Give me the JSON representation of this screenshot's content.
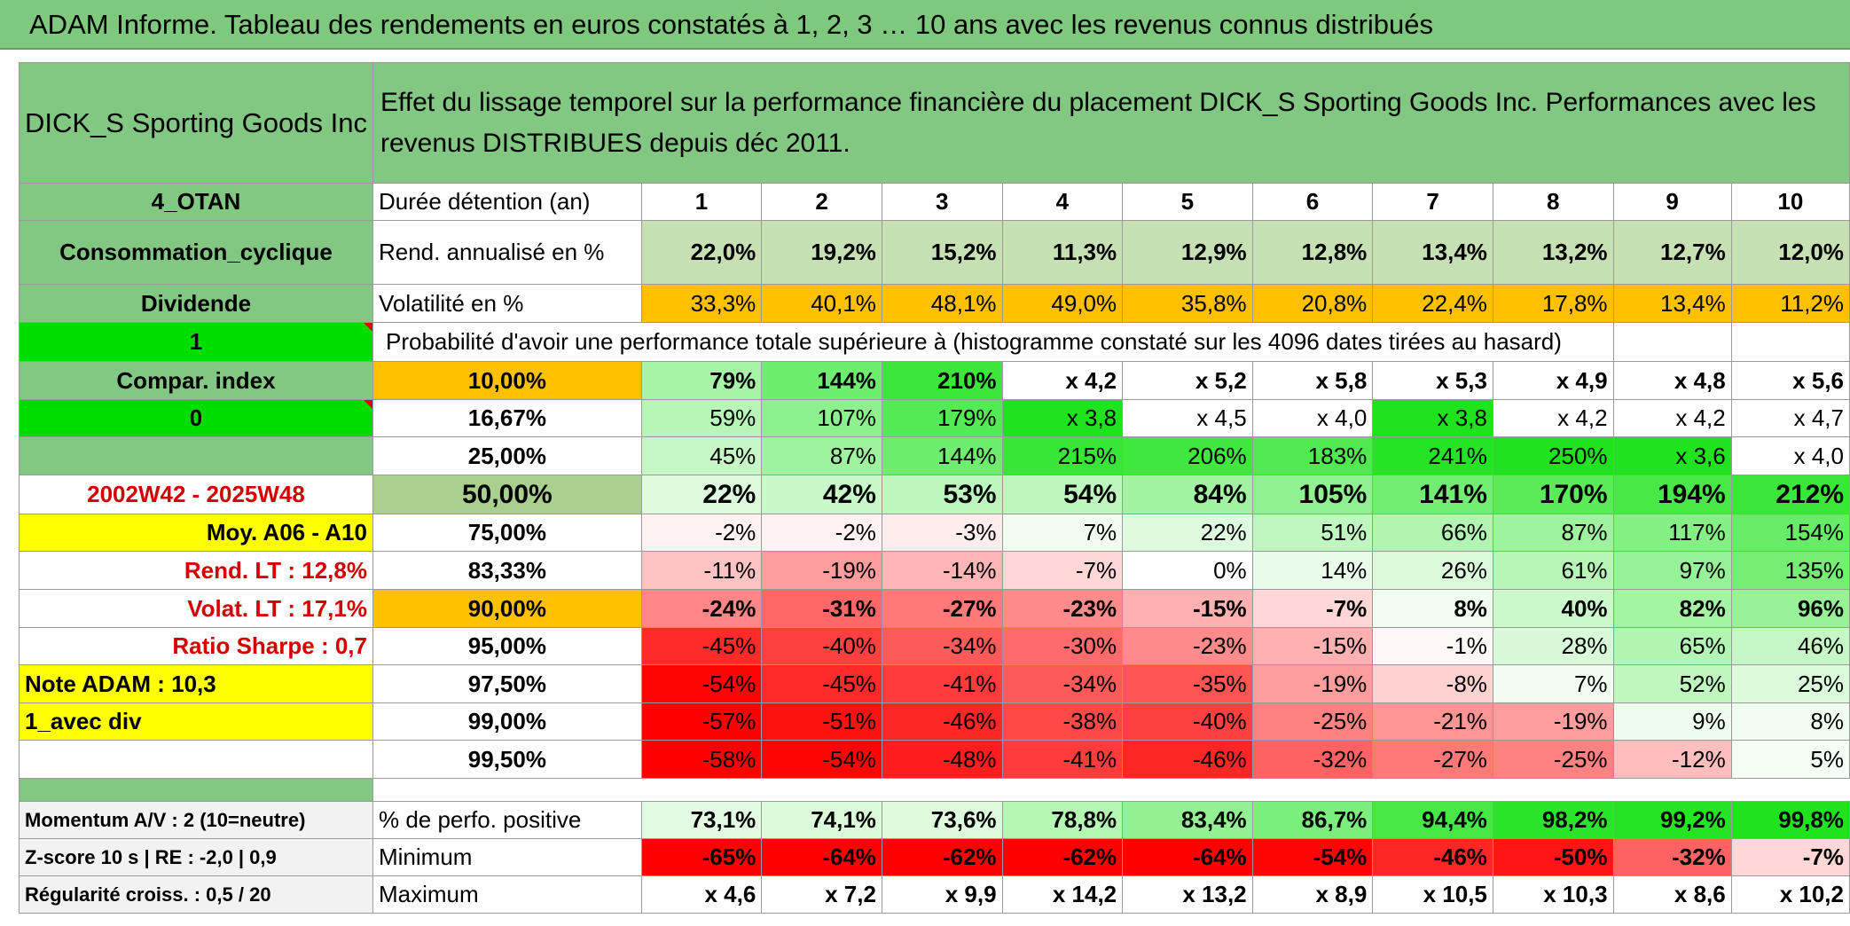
{
  "title": "ADAM Informe. Tableau des rendements en euros constatés à 1, 2, 3 … 10 ans avec les revenus connus distribués",
  "left": {
    "name": "DICK_S Sporting Goods Inc",
    "code": "4_OTAN",
    "sector": "Consommation_cyclique",
    "dividend_label": "Dividende",
    "one": "1",
    "compar_label": "Compar. index",
    "zero": "0",
    "period": "2002W42 - 2025W48",
    "moy": "Moy. A06 - A10",
    "rend_lt": "Rend. LT :    12,8%",
    "volat_lt": "Volat. LT :    17,1%",
    "sharpe": "Ratio Sharpe :    0,7",
    "note": "Note ADAM : 10,3",
    "avec_div": "1_avec div",
    "momentum": "Momentum A/V : 2 (10=neutre)",
    "zscore": "Z-score 10 s | RE : -2,0 | 0,9",
    "regularite": "Régularité croiss. : 0,5 / 20"
  },
  "header_text": "Effet du lissage temporel sur la performance financière du placement DICK_S Sporting Goods Inc. Performances avec les revenus DISTRIBUES depuis déc 2011.",
  "duree_label": "Durée détention (an)",
  "years": [
    "1",
    "2",
    "3",
    "4",
    "5",
    "6",
    "7",
    "8",
    "9",
    "10"
  ],
  "rend": {
    "label": "Rend. annualisé en %",
    "values": [
      "22,0%",
      "19,2%",
      "15,2%",
      "11,3%",
      "12,9%",
      "12,8%",
      "13,4%",
      "13,2%",
      "12,7%",
      "12,0%"
    ]
  },
  "vol": {
    "label": "Volatilité en %",
    "values": [
      "33,3%",
      "40,1%",
      "48,1%",
      "49,0%",
      "35,8%",
      "20,8%",
      "22,4%",
      "17,8%",
      "13,4%",
      "11,2%"
    ]
  },
  "proba_label": "Probabilité d'avoir une performance totale supérieure à (histogramme constaté sur les 4096 dates tirées au hasard)",
  "prob_rows": [
    {
      "p": "10,00%",
      "values": [
        "79%",
        "144%",
        "210%",
        "x 4,2",
        "x 5,2",
        "x 5,8",
        "x 5,3",
        "x 4,9",
        "x 4,8",
        "x 5,6"
      ]
    },
    {
      "p": "16,67%",
      "values": [
        "59%",
        "107%",
        "179%",
        "x 3,8",
        "x 4,5",
        "x 4,0",
        "x 3,8",
        "x 4,2",
        "x 4,2",
        "x 4,7"
      ]
    },
    {
      "p": "25,00%",
      "values": [
        "45%",
        "87%",
        "144%",
        "215%",
        "206%",
        "183%",
        "241%",
        "250%",
        "x 3,6",
        "x 4,0"
      ]
    },
    {
      "p": "50,00%",
      "values": [
        "22%",
        "42%",
        "53%",
        "54%",
        "84%",
        "105%",
        "141%",
        "170%",
        "194%",
        "212%"
      ]
    },
    {
      "p": "75,00%",
      "values": [
        "-2%",
        "-2%",
        "-3%",
        "7%",
        "22%",
        "51%",
        "66%",
        "87%",
        "117%",
        "154%"
      ]
    },
    {
      "p": "83,33%",
      "values": [
        "-11%",
        "-19%",
        "-14%",
        "-7%",
        "0%",
        "14%",
        "26%",
        "61%",
        "97%",
        "135%"
      ]
    },
    {
      "p": "90,00%",
      "values": [
        "-24%",
        "-31%",
        "-27%",
        "-23%",
        "-15%",
        "-7%",
        "8%",
        "40%",
        "82%",
        "96%"
      ]
    },
    {
      "p": "95,00%",
      "values": [
        "-45%",
        "-40%",
        "-34%",
        "-30%",
        "-23%",
        "-15%",
        "-1%",
        "28%",
        "65%",
        "46%"
      ]
    },
    {
      "p": "97,50%",
      "values": [
        "-54%",
        "-45%",
        "-41%",
        "-34%",
        "-35%",
        "-19%",
        "-8%",
        "7%",
        "52%",
        "25%"
      ]
    },
    {
      "p": "99,00%",
      "values": [
        "-57%",
        "-51%",
        "-46%",
        "-38%",
        "-40%",
        "-25%",
        "-21%",
        "-19%",
        "9%",
        "8%"
      ]
    },
    {
      "p": "99,50%",
      "values": [
        "-58%",
        "-54%",
        "-48%",
        "-41%",
        "-46%",
        "-32%",
        "-27%",
        "-25%",
        "-12%",
        "5%"
      ]
    }
  ],
  "pos": {
    "label": "% de perfo. positive",
    "values": [
      "73,1%",
      "74,1%",
      "73,6%",
      "78,8%",
      "83,4%",
      "86,7%",
      "94,4%",
      "98,2%",
      "99,2%",
      "99,8%"
    ]
  },
  "min": {
    "label": "Minimum",
    "values": [
      "-65%",
      "-64%",
      "-62%",
      "-62%",
      "-64%",
      "-54%",
      "-46%",
      "-50%",
      "-32%",
      "-7%"
    ]
  },
  "max": {
    "label": "Maximum",
    "values": [
      "x 4,6",
      "x 7,2",
      "x 9,9",
      "x 14,2",
      "x 13,2",
      "x 8,9",
      "x 10,5",
      "x 10,3",
      "x 8,6",
      "x 10,2"
    ]
  },
  "colors": {
    "header_green": "#82c882",
    "rend_fill": "#c6e0b4",
    "orange": "#ffc000",
    "yellow": "#ffff00",
    "bright_green": "#00dd00",
    "red_text": "#d40000"
  }
}
